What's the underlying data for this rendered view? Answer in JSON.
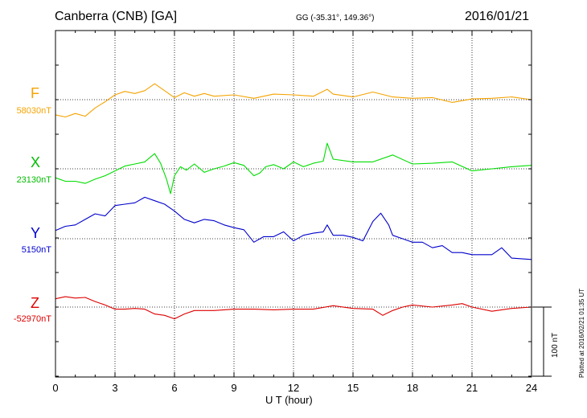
{
  "header": {
    "station": "Canberra (CNB)  [GA]",
    "coords": "GG (-35.31°, 149.36°)",
    "date": "2016/01/21"
  },
  "colors": {
    "F": "#f5a300",
    "X": "#00dd00",
    "Y": "#0000cc",
    "Z": "#dd0000"
  },
  "chart_data": {
    "type": "line",
    "title": "Canberra (CNB)  [GA]",
    "xlabel": "U T (hour)",
    "xlim": [
      0,
      24
    ],
    "x_ticks": [
      "0",
      "3",
      "6",
      "9",
      "12",
      "15",
      "18",
      "21",
      "24"
    ],
    "grid": true,
    "scale_bar_nT": 100,
    "scale_label": "100 nT",
    "plotted_note": "Plotted at 2016/02/21 01:35 UT",
    "series": [
      {
        "name": "F",
        "baseline_label": "58030nT",
        "x": [
          0,
          0.5,
          1,
          1.5,
          2,
          2.5,
          3,
          3.5,
          4,
          4.5,
          5,
          5.5,
          6,
          6.5,
          7,
          7.5,
          8,
          9,
          10,
          11,
          12,
          13,
          13.7,
          14,
          15,
          16,
          17,
          18,
          19,
          20,
          21,
          22,
          23,
          24
        ],
        "y": [
          -22,
          -25,
          -20,
          -24,
          -12,
          -3,
          7,
          12,
          9,
          13,
          23,
          13,
          3,
          10,
          5,
          9,
          5,
          7,
          2,
          8,
          7,
          5,
          15,
          8,
          4,
          11,
          4,
          2,
          3,
          -4,
          1,
          2,
          4,
          0
        ]
      },
      {
        "name": "X",
        "baseline_label": "23130nT",
        "x": [
          0,
          0.5,
          1,
          1.5,
          2,
          2.5,
          3,
          3.5,
          4,
          4.5,
          5,
          5.3,
          5.6,
          5.8,
          6,
          6.3,
          6.6,
          7,
          7.5,
          8,
          8.5,
          9,
          9.5,
          10,
          10.3,
          10.6,
          11,
          11.5,
          12,
          12.5,
          13,
          13.5,
          13.7,
          14,
          15,
          16,
          17,
          18,
          19,
          20,
          21,
          22,
          23,
          24
        ],
        "y": [
          -13,
          -18,
          -18,
          -21,
          -15,
          -10,
          -3,
          4,
          7,
          10,
          22,
          8,
          -15,
          -36,
          -10,
          3,
          -2,
          7,
          -5,
          0,
          4,
          9,
          5,
          -10,
          -6,
          3,
          6,
          0,
          10,
          3,
          8,
          11,
          37,
          14,
          10,
          10,
          20,
          7,
          8,
          10,
          -3,
          0,
          3,
          5
        ]
      },
      {
        "name": "Y",
        "baseline_label": "5150nT",
        "x": [
          0,
          0.5,
          1,
          1.5,
          2,
          2.5,
          3,
          3.5,
          4,
          4.5,
          5,
          5.5,
          6,
          6.5,
          7,
          7.5,
          8,
          8.5,
          9,
          9.5,
          10,
          10.5,
          11,
          11.5,
          12,
          12.5,
          13,
          13.5,
          13.7,
          14,
          14.5,
          15,
          15.5,
          16,
          16.4,
          16.8,
          17,
          17.5,
          18,
          18.5,
          19,
          19.5,
          20,
          20.5,
          21,
          22,
          22.5,
          23,
          24
        ],
        "y": [
          12,
          18,
          20,
          28,
          36,
          33,
          48,
          50,
          52,
          60,
          55,
          50,
          40,
          28,
          23,
          28,
          26,
          20,
          16,
          13,
          -5,
          3,
          3,
          10,
          -3,
          5,
          8,
          10,
          20,
          5,
          5,
          2,
          -3,
          25,
          37,
          20,
          5,
          0,
          -5,
          -5,
          -13,
          -10,
          -20,
          -20,
          -23,
          -23,
          -13,
          -28,
          -30
        ]
      },
      {
        "name": "Z",
        "baseline_label": "-52970nT",
        "x": [
          0,
          0.5,
          1,
          1.5,
          2,
          2.5,
          3,
          3.5,
          4,
          4.5,
          5,
          5.5,
          6,
          6.5,
          7,
          8,
          9,
          10,
          11,
          12,
          13,
          14,
          15,
          16,
          16.5,
          17,
          17.5,
          18,
          19,
          20,
          20.5,
          21,
          22,
          23,
          24
        ],
        "y": [
          12,
          15,
          13,
          14,
          8,
          3,
          -3,
          -3,
          -2,
          -3,
          -10,
          -12,
          -17,
          -10,
          -5,
          -5,
          -3,
          -3,
          -4,
          -3,
          -3,
          2,
          -2,
          -3,
          -12,
          -5,
          0,
          3,
          0,
          3,
          5,
          0,
          -6,
          -2,
          0
        ]
      }
    ]
  },
  "scale_label": "100 nT",
  "plotted_note": "Plotted at 2016/02/21 01:35 UT"
}
